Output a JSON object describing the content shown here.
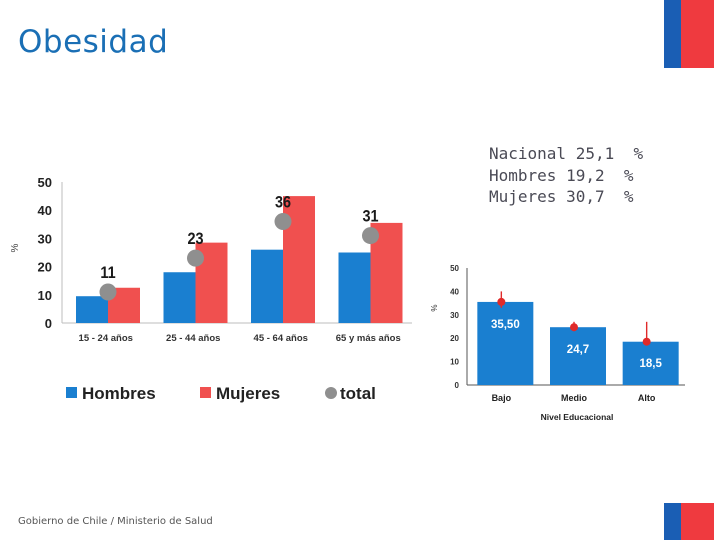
{
  "page": {
    "title": "Obesidad",
    "footer": "Gobierno de Chile / Ministerio de Salud",
    "stats": [
      "Nacional 25,1  %",
      "Hombres 19,2  %",
      "Mujeres 30,7  %"
    ],
    "colors": {
      "title": "#1a6fb5",
      "flag_blue": "#1a5eb4",
      "flag_red": "#ef3a3f"
    }
  },
  "chart_data": [
    {
      "type": "bar",
      "ylabel": "%",
      "ylim": [
        0,
        50
      ],
      "yticks": [
        0,
        10,
        20,
        30,
        40,
        50
      ],
      "categories": [
        "15 - 24 años",
        "25 - 44 años",
        "45 - 64 años",
        "65 y más años"
      ],
      "series": [
        {
          "name": "Hombres",
          "type": "bar",
          "color": "#1a7fd0",
          "values": [
            9.5,
            18,
            26,
            25
          ]
        },
        {
          "name": "Mujeres",
          "type": "bar",
          "color": "#f0504f",
          "values": [
            12.5,
            28.5,
            45,
            35.5
          ]
        },
        {
          "name": "total",
          "type": "scatter",
          "color": "#8f8f8f",
          "values": [
            11,
            23,
            36,
            31
          ],
          "labels": [
            "11",
            "23",
            "36",
            "31"
          ]
        }
      ],
      "grid": false,
      "legend": "bottom"
    },
    {
      "type": "bar",
      "ylabel": "%",
      "xlabel": "Nivel Educacional",
      "ylim": [
        0,
        50
      ],
      "yticks": [
        0,
        10,
        20,
        30,
        40,
        50
      ],
      "categories": [
        "Bajo",
        "Medio",
        "Alto"
      ],
      "values": [
        35.5,
        24.7,
        18.5
      ],
      "labels": [
        "35,50",
        "24,7",
        "18,5"
      ],
      "error_high": [
        40,
        27,
        27
      ],
      "error_low": [
        33,
        23,
        17
      ],
      "bar_color": "#1a7fd0",
      "marker_color": "#e02a2a",
      "grid": false
    }
  ]
}
